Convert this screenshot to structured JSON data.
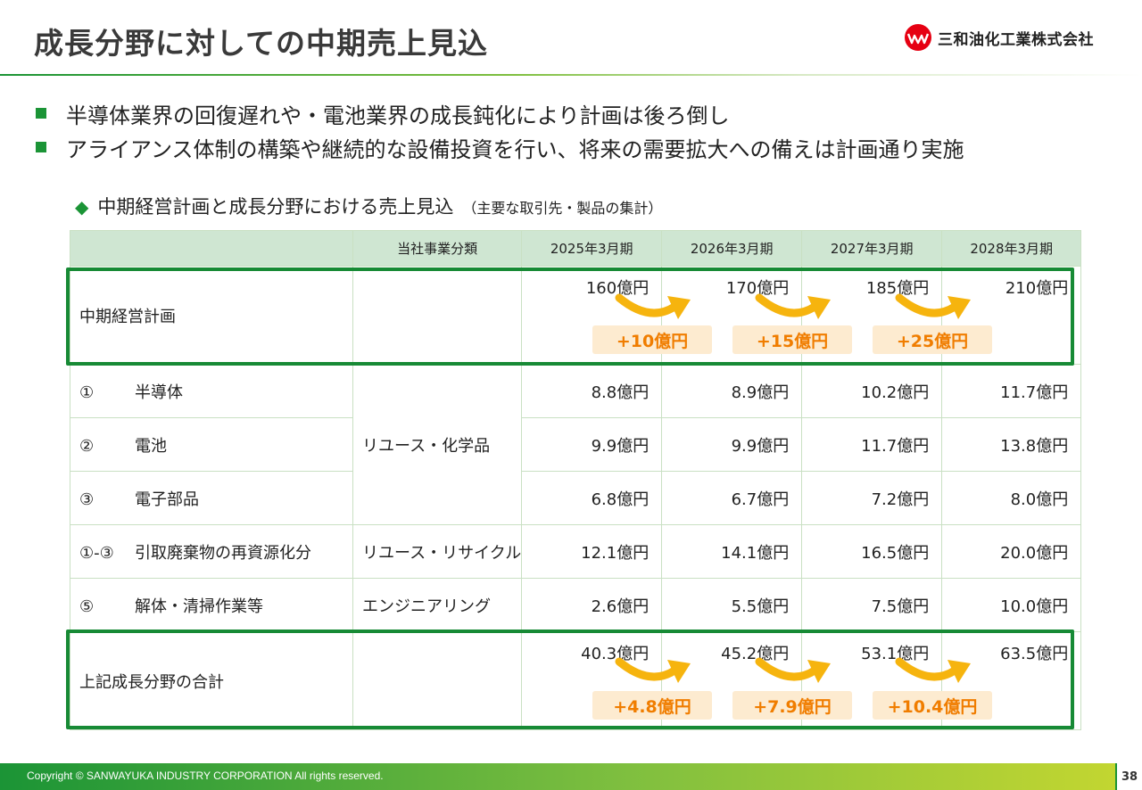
{
  "header": {
    "title": "成長分野に対しての中期売上見込",
    "company_name": "三和油化工業株式会社",
    "logo_icon": "wave-logo-icon"
  },
  "bullets": [
    "半導体業界の回復遅れや・電池業界の成長鈍化により計画は後ろ倒し",
    "アライアンス体制の構築や継続的な設備投資を行い、将来の需要拡大への備えは計画通り実施"
  ],
  "subheading": {
    "marker": "◆",
    "main": "中期経営計画と成長分野における売上見込",
    "note": "（主要な取引先・製品の集計）"
  },
  "table": {
    "headers": [
      "",
      "当社事業分類",
      "2025年3月期",
      "2026年3月期",
      "2027年3月期",
      "2028年3月期"
    ],
    "plan": {
      "label": "中期経営計画",
      "values": [
        "160億円",
        "170億円",
        "185億円",
        "210億円"
      ],
      "deltas": [
        "+10億円",
        "+15億円",
        "+25億円"
      ]
    },
    "rows": [
      {
        "index": "①",
        "name": "半導体",
        "values": [
          "8.8億円",
          "8.9億円",
          "10.2億円",
          "11.7億円"
        ]
      },
      {
        "index": "②",
        "name": "電池",
        "values": [
          "9.9億円",
          "9.9億円",
          "11.7億円",
          "13.8億円"
        ]
      },
      {
        "index": "③",
        "name": "電子部品",
        "values": [
          "6.8億円",
          "6.7億円",
          "7.2億円",
          "8.0億円"
        ]
      },
      {
        "index": "①-③",
        "name": "引取廃棄物の再資源化分",
        "category": "リユース・リサイクル",
        "values": [
          "12.1億円",
          "14.1億円",
          "16.5億円",
          "20.0億円"
        ]
      },
      {
        "index": "⑤",
        "name": "解体・清掃作業等",
        "category": "エンジニアリング",
        "values": [
          "2.6億円",
          "5.5億円",
          "7.5億円",
          "10.0億円"
        ]
      }
    ],
    "group_category": "リユース・化学品",
    "total": {
      "label": "上記成長分野の合計",
      "values": [
        "40.3億円",
        "45.2億円",
        "53.1億円",
        "63.5億円"
      ],
      "deltas": [
        "+4.8億円",
        "+7.9億円",
        "+10.4億円"
      ]
    }
  },
  "colors": {
    "accent_green": "#178a35",
    "header_fill": "#cfe6d2",
    "delta_text": "#f07d00",
    "delta_fill": "#fdebd0",
    "arrow": "#f6b40e"
  },
  "footer": {
    "copyright": "Copyright © SANWAYUKA INDUSTRY CORPORATION All rights reserved.",
    "page_number": "38"
  }
}
